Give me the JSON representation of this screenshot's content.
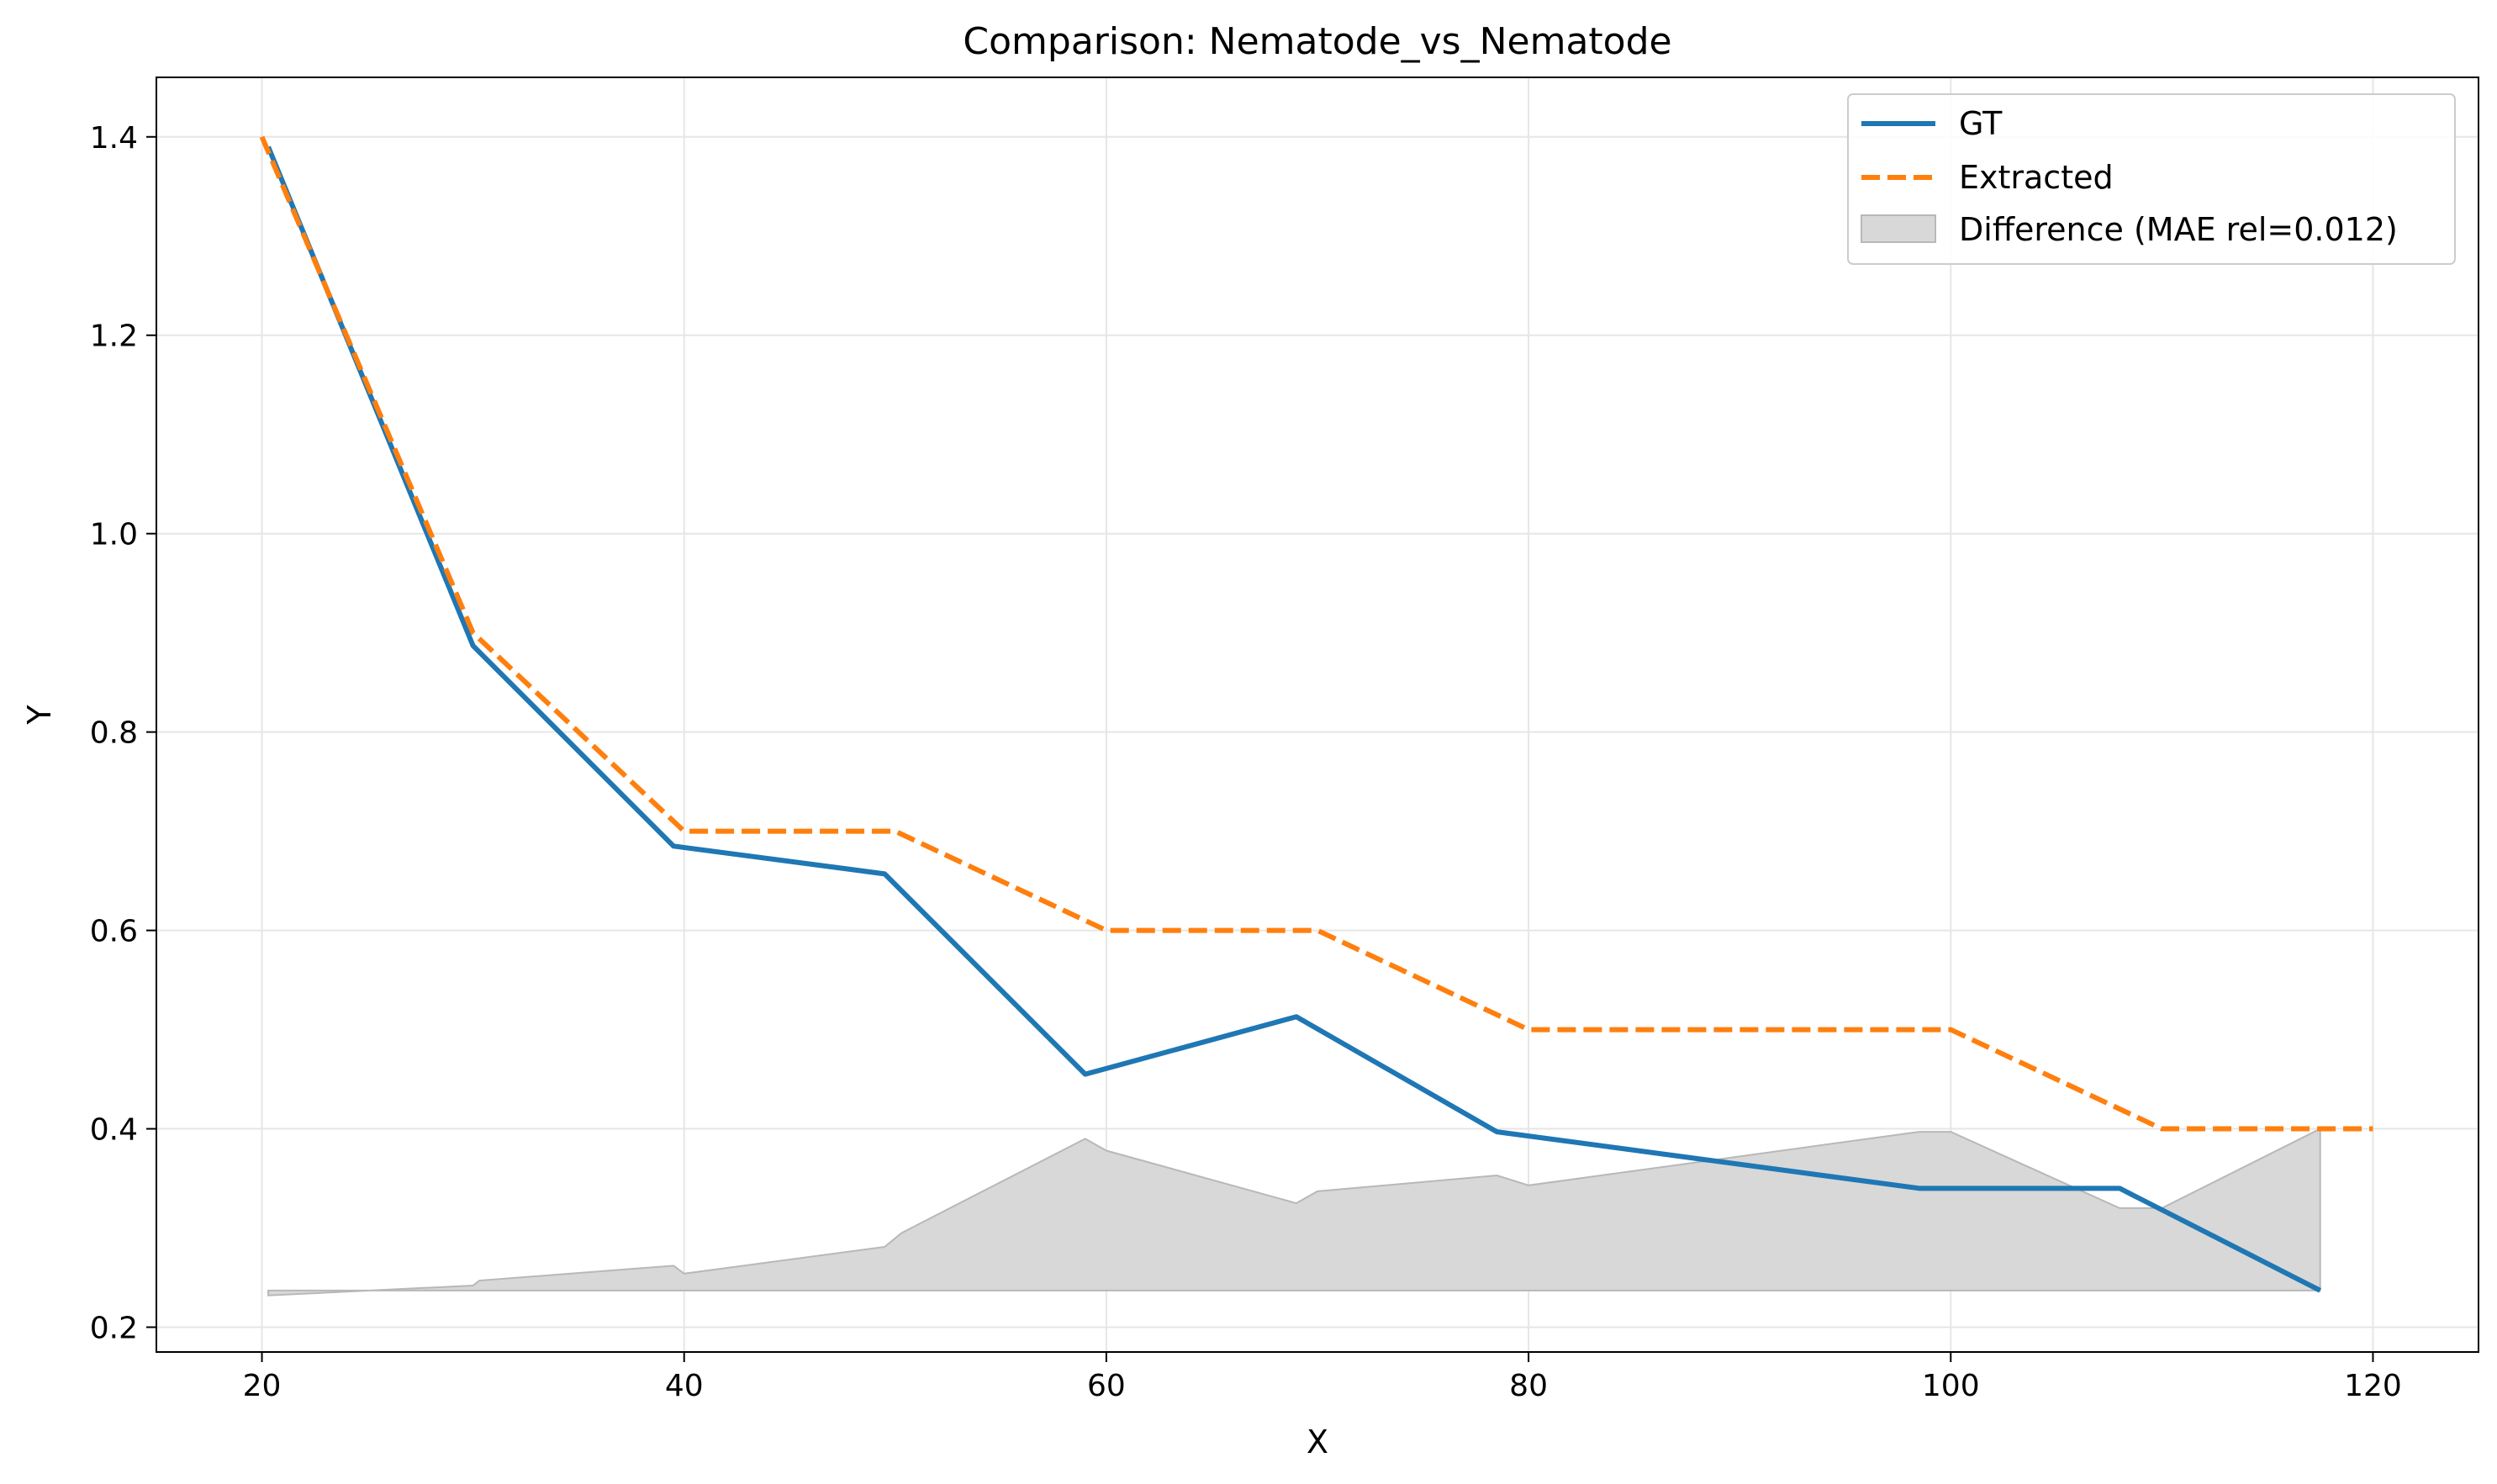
{
  "chart_data": {
    "type": "line",
    "title": "Comparison: Nematode_vs_Nematode",
    "xlabel": "X",
    "ylabel": "Y",
    "xlim": [
      15,
      125
    ],
    "ylim": [
      0.175,
      1.46
    ],
    "xticks": [
      20,
      40,
      60,
      80,
      100,
      120
    ],
    "yticks": [
      0.2,
      0.4,
      0.6,
      0.8,
      1.0,
      1.2,
      1.4
    ],
    "xtick_labels": [
      "20",
      "40",
      "60",
      "80",
      "100",
      "120"
    ],
    "ytick_labels": [
      "0.2",
      "0.4",
      "0.6",
      "0.8",
      "1.0",
      "1.2",
      "1.4"
    ],
    "grid": true,
    "legend_position": "top-right",
    "series": [
      {
        "name": "GT",
        "style": "solid",
        "color": "#1f77b4",
        "x": [
          20.3,
          30.0,
          39.5,
          49.5,
          59.0,
          69.0,
          78.5,
          98.5,
          108.0,
          117.5
        ],
        "y": [
          1.39,
          0.887,
          0.685,
          0.657,
          0.455,
          0.513,
          0.397,
          0.34,
          0.34,
          0.237
        ]
      },
      {
        "name": "Extracted",
        "style": "dashed",
        "color": "#ff7f0e",
        "x": [
          20,
          30,
          40,
          50,
          60,
          70,
          80,
          100,
          110,
          120
        ],
        "y": [
          1.4,
          0.9,
          0.7,
          0.7,
          0.6,
          0.6,
          0.5,
          0.5,
          0.4,
          0.4
        ]
      }
    ],
    "difference_area": {
      "name": "Difference (MAE rel=0.012)",
      "color": "#d8d8d8",
      "baseline": 0.237,
      "x": [
        20.3,
        30.0,
        30.3,
        39.5,
        40.0,
        49.5,
        50.3,
        59.0,
        60.0,
        69.0,
        70.0,
        78.5,
        80.0,
        98.5,
        100.0,
        108.0,
        110.0,
        117.5
      ],
      "y": [
        0.232,
        0.242,
        0.247,
        0.262,
        0.254,
        0.281,
        0.295,
        0.39,
        0.378,
        0.325,
        0.337,
        0.353,
        0.343,
        0.397,
        0.397,
        0.32,
        0.32,
        0.4
      ]
    }
  }
}
